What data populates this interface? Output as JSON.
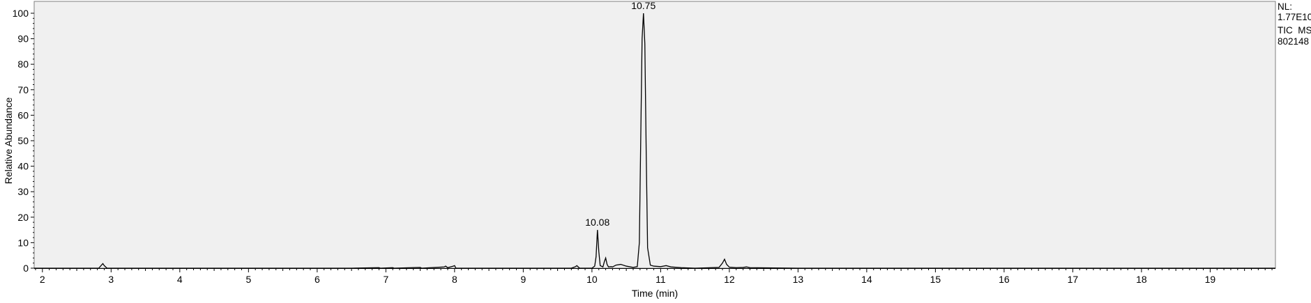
{
  "chart_data": {
    "type": "line",
    "xlabel": "Time (min)",
    "ylabel": "Relative Abundance",
    "xlim": [
      1.88,
      19.95
    ],
    "ylim": [
      0,
      100
    ],
    "x_ticks": [
      2,
      3,
      4,
      5,
      6,
      7,
      8,
      9,
      10,
      11,
      12,
      13,
      14,
      15,
      16,
      17,
      18,
      19
    ],
    "y_ticks": [
      0,
      10,
      20,
      30,
      40,
      50,
      60,
      70,
      80,
      90,
      100
    ],
    "grid": false,
    "background": "#f0f0f0",
    "line_color": "#000000",
    "info": {
      "nl_label": "NL:",
      "nl_value": "1.77E10",
      "scan_type": "TIC  MS",
      "sample_id": "802148"
    },
    "peak_labels": [
      {
        "x": 10.08,
        "y": 15,
        "text": "10.08"
      },
      {
        "x": 10.75,
        "y": 100,
        "text": "10.75"
      }
    ],
    "series": [
      {
        "x": [
          1.88,
          2.5,
          2.82,
          2.86,
          2.88,
          2.9,
          2.94,
          3.5,
          6.5,
          6.9,
          6.92,
          7.1,
          7.12,
          7.5,
          7.52,
          7.85,
          7.87,
          7.9,
          7.98,
          8.0,
          8.02,
          9.7,
          9.76,
          9.78,
          9.82,
          10.0,
          10.04,
          10.06,
          10.08,
          10.1,
          10.12,
          10.16,
          10.18,
          10.2,
          10.22,
          10.24,
          10.28,
          10.3,
          10.35,
          10.42,
          10.5,
          10.6,
          10.66,
          10.69,
          10.71,
          10.73,
          10.75,
          10.77,
          10.79,
          10.81,
          10.85,
          10.9,
          11.0,
          11.08,
          11.15,
          11.3,
          11.5,
          11.85,
          11.9,
          11.93,
          11.96,
          12.0,
          12.1,
          12.2,
          12.25,
          12.3,
          13.0,
          16.0,
          19.95
        ],
        "y": [
          0,
          0,
          0,
          1.2,
          1.8,
          1.0,
          0,
          0,
          0,
          0.2,
          0,
          0.2,
          0,
          0.3,
          0,
          0.5,
          0.8,
          0.2,
          0.8,
          1.0,
          0,
          0,
          0.6,
          1.0,
          0,
          0,
          0.8,
          4.5,
          15,
          6.5,
          1.0,
          0.5,
          2.5,
          4.0,
          1.5,
          0.5,
          0.6,
          0.5,
          1.2,
          1.5,
          0.8,
          0.3,
          0.6,
          10,
          50,
          90,
          100,
          88,
          45,
          8,
          1.2,
          0.8,
          0.6,
          1.0,
          0.5,
          0.2,
          0,
          0.3,
          2.0,
          3.5,
          1.5,
          0.4,
          0.2,
          0.3,
          0.5,
          0.2,
          0,
          0,
          0
        ]
      }
    ]
  }
}
